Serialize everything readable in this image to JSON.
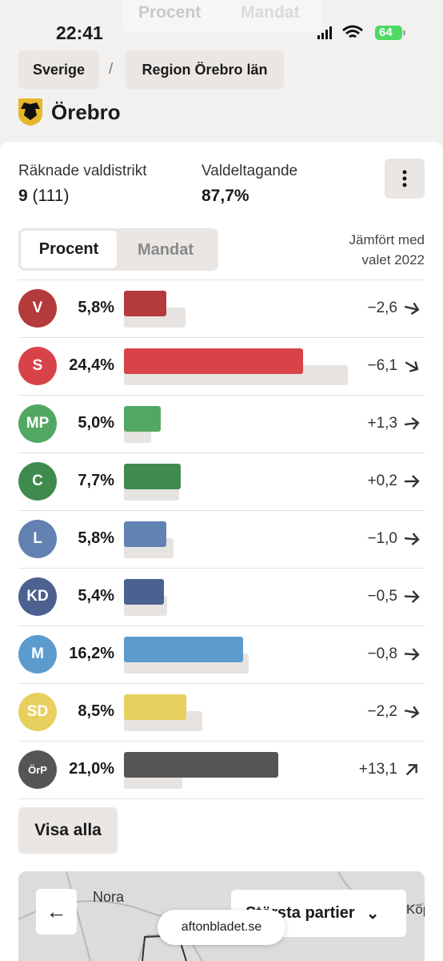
{
  "status_bar": {
    "time": "22:41",
    "battery": "64"
  },
  "top_tabs": [
    "Procent",
    "Mandat"
  ],
  "breadcrumb": {
    "items": [
      "Sverige",
      "Region Örebro län"
    ],
    "separator": "/"
  },
  "title": "Örebro",
  "stats": {
    "districts_label": "Räknade valdistrikt",
    "districts_counted": "9",
    "districts_total": "(111)",
    "turnout_label": "Valdeltagande",
    "turnout": "87,7%"
  },
  "toggle": [
    "Procent",
    "Mandat"
  ],
  "comparison_label": [
    "Jämfört med",
    "valet 2022"
  ],
  "parties": [
    {
      "abbr": "V",
      "color": "#b53a3b",
      "value": 5.8,
      "value_label": "5,8%",
      "change": -2.6,
      "change_label": "−2,6"
    },
    {
      "abbr": "S",
      "color": "#d8434a",
      "value": 24.4,
      "value_label": "24,4%",
      "change": -6.1,
      "change_label": "−6,1"
    },
    {
      "abbr": "MP",
      "color": "#52a862",
      "value": 5.0,
      "value_label": "5,0%",
      "change": 1.3,
      "change_label": "+1,3"
    },
    {
      "abbr": "C",
      "color": "#3f8b4e",
      "value": 7.7,
      "value_label": "7,7%",
      "change": 0.2,
      "change_label": "+0,2"
    },
    {
      "abbr": "L",
      "color": "#6282b2",
      "value": 5.8,
      "value_label": "5,8%",
      "change": -1.0,
      "change_label": "−1,0"
    },
    {
      "abbr": "KD",
      "color": "#4c6190",
      "value": 5.4,
      "value_label": "5,4%",
      "change": -0.5,
      "change_label": "−0,5"
    },
    {
      "abbr": "M",
      "color": "#5b9bce",
      "value": 16.2,
      "value_label": "16,2%",
      "change": -0.8,
      "change_label": "−0,8"
    },
    {
      "abbr": "SD",
      "color": "#e8d05f",
      "value": 8.5,
      "value_label": "8,5%",
      "change": -2.2,
      "change_label": "−2,2"
    },
    {
      "abbr": "ÖrP",
      "color": "#555555",
      "value": 21.0,
      "value_label": "21,0%",
      "change": 13.1,
      "change_label": "+13,1"
    }
  ],
  "show_all": "Visa alla",
  "map": {
    "places": [
      "Nora",
      "Köp"
    ],
    "dropdown": "Största partier",
    "url": "aftonbladet.se"
  }
}
